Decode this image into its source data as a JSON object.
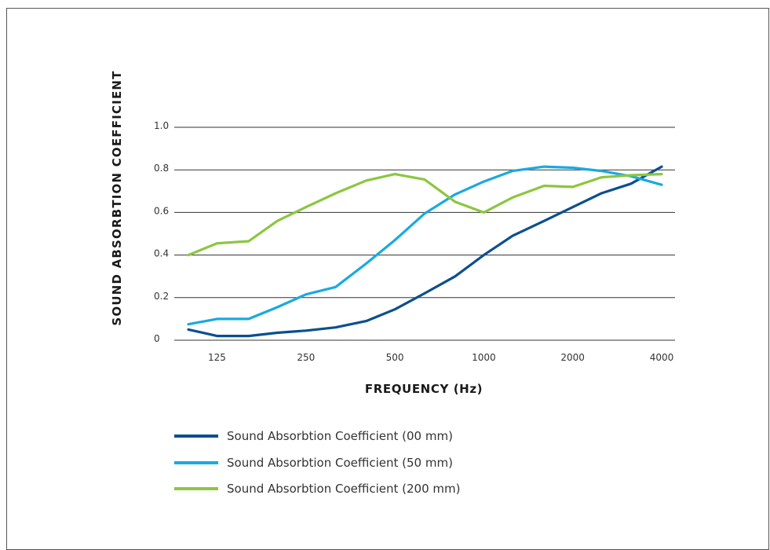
{
  "chart_data": {
    "type": "line",
    "ylabel": "SOUND ABSORBTION COEFFICIENT",
    "xlabel": "FREQUENCY (Hz)",
    "ylim": [
      0,
      1.0
    ],
    "y_ticks": [
      "0",
      "0.2",
      "0.4",
      "0.6",
      "0.8",
      "1.0"
    ],
    "y_tick_values": [
      0,
      0.2,
      0.4,
      0.6,
      0.8,
      1.0
    ],
    "x_ticks": [
      "125",
      "250",
      "500",
      "1000",
      "2000",
      "4000"
    ],
    "x_tick_values": [
      125,
      250,
      500,
      1000,
      2000,
      4000
    ],
    "x_scale": "log",
    "grid": true,
    "legend_position": "bottom-left",
    "x": [
      100,
      125,
      160,
      200,
      250,
      315,
      400,
      500,
      630,
      800,
      1000,
      1250,
      1600,
      2000,
      2500,
      3150,
      4000
    ],
    "series": [
      {
        "name": "Sound Absorbtion Coefficient (00 mm)",
        "color": "#0b4f8f",
        "values": [
          0.05,
          0.02,
          0.02,
          0.035,
          0.045,
          0.06,
          0.09,
          0.145,
          0.22,
          0.3,
          0.4,
          0.49,
          0.56,
          0.625,
          0.69,
          0.735,
          0.815
        ]
      },
      {
        "name": "Sound Absorbtion Coefficient (50 mm)",
        "color": "#1aa9e1",
        "values": [
          0.075,
          0.1,
          0.1,
          0.155,
          0.215,
          0.25,
          0.36,
          0.47,
          0.595,
          0.685,
          0.745,
          0.795,
          0.815,
          0.81,
          0.795,
          0.77,
          0.73
        ]
      },
      {
        "name": "Sound Absorbtion Coefficient (200 mm)",
        "color": "#8cc63f",
        "values": [
          0.4,
          0.455,
          0.465,
          0.56,
          0.625,
          0.69,
          0.75,
          0.78,
          0.755,
          0.65,
          0.6,
          0.67,
          0.725,
          0.72,
          0.765,
          0.775,
          0.78
        ]
      }
    ]
  }
}
